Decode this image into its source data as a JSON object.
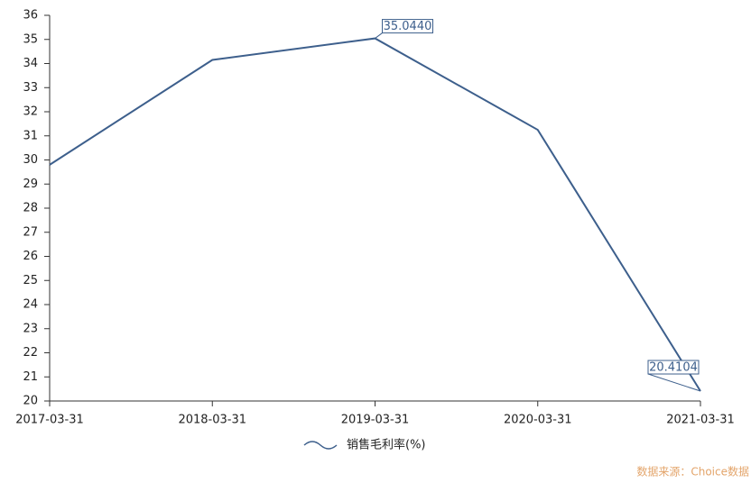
{
  "chart_data": {
    "type": "line",
    "categories": [
      "2017-03-31",
      "2018-03-31",
      "2019-03-31",
      "2020-03-31",
      "2021-03-31"
    ],
    "series": [
      {
        "name": "销售毛利率(%)",
        "color": "#3d5f8c",
        "values": [
          29.8,
          34.15,
          35.044,
          31.25,
          20.4104
        ],
        "value_labels": [
          null,
          null,
          "35.0440",
          null,
          "20.4104"
        ]
      }
    ],
    "ylim": [
      20,
      36
    ],
    "yticks": [
      20,
      21,
      22,
      23,
      24,
      25,
      26,
      27,
      28,
      29,
      30,
      31,
      32,
      33,
      34,
      35,
      36
    ],
    "legend": "bottom",
    "source": "数据来源：Choice数据"
  }
}
